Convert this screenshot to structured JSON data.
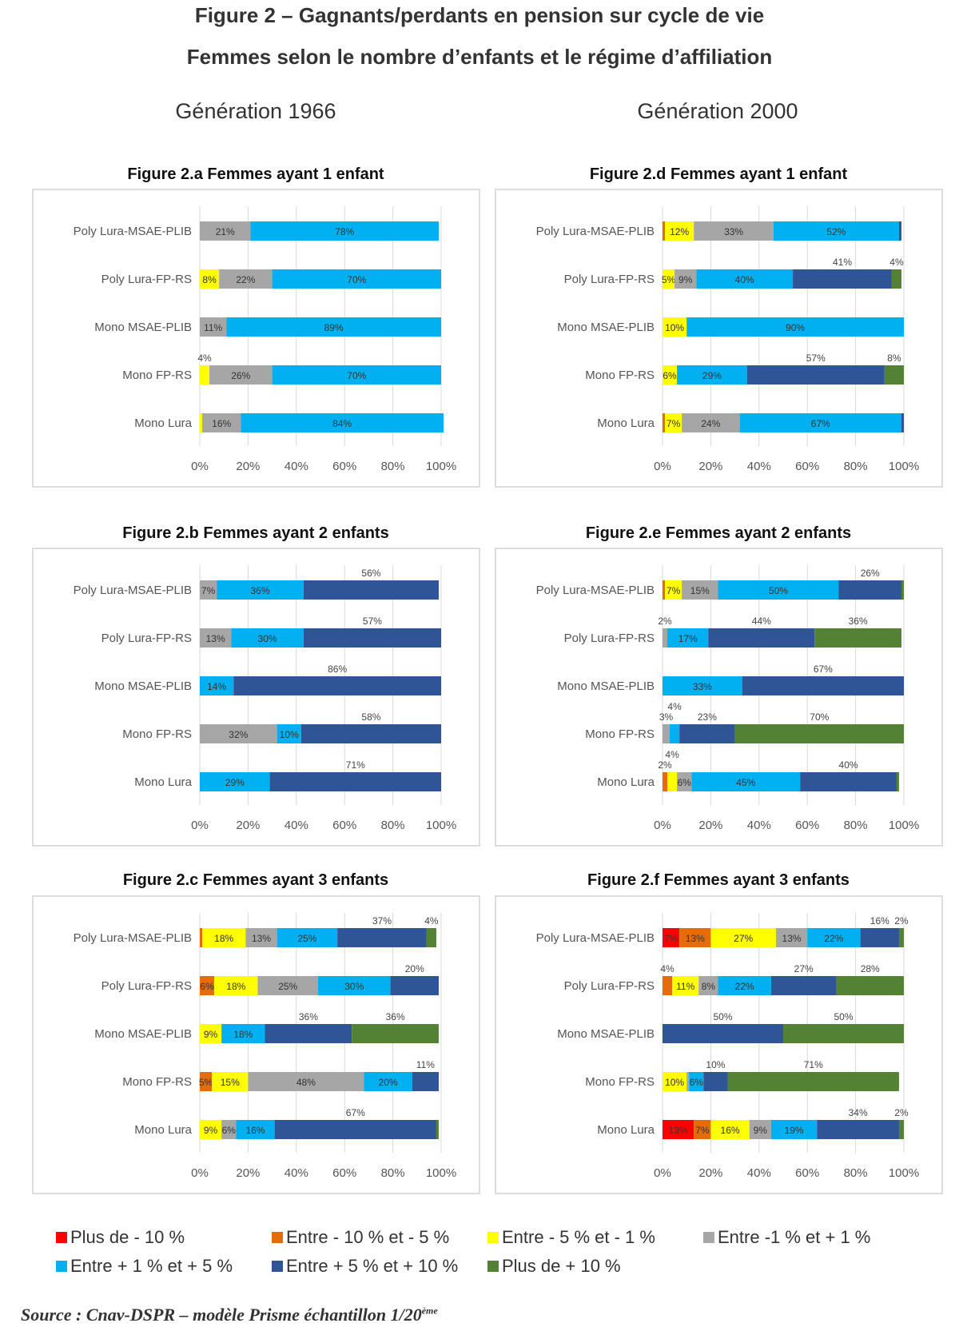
{
  "title_line1": "Figure 2 – Gagnants/perdants en pension sur cycle de vie",
  "title_line2": "Femmes selon le nombre d’enfants et le régime d’affiliation",
  "generations": [
    "Génération 1966",
    "Génération 2000"
  ],
  "source": "Source : Cnav-DSPR – modèle Prisme échantillon 1/20",
  "source_sup": "ème",
  "colors": [
    "#ff0000",
    "#e46c0a",
    "#ffff00",
    "#a6a6a6",
    "#00b0f0",
    "#2f5597",
    "#548235"
  ],
  "chart_data": [
    {
      "id": "a",
      "type": "bar",
      "orientation": "horizontal",
      "stacked": true,
      "title": "Figure 2.a Femmes ayant 1 enfant",
      "categories": [
        "Poly Lura-MSAE-PLIB",
        "Poly Lura-FP-RS",
        "Mono MSAE-PLIB",
        "Mono FP-RS",
        "Mono Lura"
      ],
      "xticks": [
        "0%",
        "20%",
        "40%",
        "60%",
        "80%",
        "100%"
      ],
      "xlim": [
        0,
        100
      ],
      "values": [
        [
          0,
          0,
          0,
          21,
          78,
          0,
          0
        ],
        [
          0,
          0,
          8,
          22,
          70,
          0,
          0
        ],
        [
          0,
          0,
          0,
          11,
          89,
          0,
          0
        ],
        [
          0,
          0,
          4,
          26,
          70,
          0,
          0
        ],
        [
          0,
          0,
          1,
          16,
          84,
          0,
          0
        ]
      ]
    },
    {
      "id": "d",
      "type": "bar",
      "orientation": "horizontal",
      "stacked": true,
      "title": "Figure 2.d Femmes ayant 1 enfant",
      "categories": [
        "Poly Lura-MSAE-PLIB",
        "Poly Lura-FP-RS",
        "Mono MSAE-PLIB",
        "Mono FP-RS",
        "Mono Lura"
      ],
      "xticks": [
        "0%",
        "20%",
        "40%",
        "60%",
        "80%",
        "100%"
      ],
      "xlim": [
        0,
        100
      ],
      "values": [
        [
          0,
          1,
          12,
          33,
          52,
          1,
          0
        ],
        [
          0,
          0,
          5,
          9,
          40,
          41,
          4
        ],
        [
          0,
          0,
          10,
          0,
          90,
          0,
          0
        ],
        [
          0,
          0,
          6,
          0,
          29,
          57,
          8
        ],
        [
          0,
          1,
          7,
          24,
          67,
          1,
          0
        ]
      ]
    },
    {
      "id": "b",
      "type": "bar",
      "orientation": "horizontal",
      "stacked": true,
      "title": "Figure 2.b Femmes ayant 2 enfants",
      "categories": [
        "Poly Lura-MSAE-PLIB",
        "Poly Lura-FP-RS",
        "Mono MSAE-PLIB",
        "Mono FP-RS",
        "Mono Lura"
      ],
      "xticks": [
        "0%",
        "20%",
        "40%",
        "60%",
        "80%",
        "100%"
      ],
      "xlim": [
        0,
        100
      ],
      "values": [
        [
          0,
          0,
          0,
          7,
          36,
          56,
          0
        ],
        [
          0,
          0,
          0,
          13,
          30,
          57,
          0
        ],
        [
          0,
          0,
          0,
          0,
          14,
          86,
          0
        ],
        [
          0,
          0,
          0,
          32,
          10,
          58,
          0
        ],
        [
          0,
          0,
          0,
          0,
          29,
          71,
          0
        ]
      ]
    },
    {
      "id": "e",
      "type": "bar",
      "orientation": "horizontal",
      "stacked": true,
      "title": "Figure 2.e Femmes ayant 2 enfants",
      "categories": [
        "Poly Lura-MSAE-PLIB",
        "Poly Lura-FP-RS",
        "Mono MSAE-PLIB",
        "Mono FP-RS",
        "Mono Lura"
      ],
      "xticks": [
        "0%",
        "20%",
        "40%",
        "60%",
        "80%",
        "100%"
      ],
      "xlim": [
        0,
        100
      ],
      "values": [
        [
          0,
          1,
          7,
          15,
          50,
          26,
          1
        ],
        [
          0,
          0,
          0,
          2,
          17,
          44,
          36
        ],
        [
          0,
          0,
          0,
          0,
          33,
          67,
          0
        ],
        [
          0,
          0,
          0,
          3,
          4,
          23,
          70
        ],
        [
          0,
          2,
          4,
          6,
          45,
          40,
          1
        ]
      ]
    },
    {
      "id": "c",
      "type": "bar",
      "orientation": "horizontal",
      "stacked": true,
      "title": "Figure 2.c Femmes ayant 3 enfants",
      "categories": [
        "Poly Lura-MSAE-PLIB",
        "Poly Lura-FP-RS",
        "Mono MSAE-PLIB",
        "Mono FP-RS",
        "Mono Lura"
      ],
      "xticks": [
        "0%",
        "20%",
        "40%",
        "60%",
        "80%",
        "100%"
      ],
      "xlim": [
        0,
        100
      ],
      "values": [
        [
          0,
          1,
          18,
          13,
          25,
          37,
          4
        ],
        [
          0,
          6,
          18,
          25,
          30,
          20,
          0
        ],
        [
          0,
          0,
          9,
          0,
          18,
          36,
          36
        ],
        [
          0,
          5,
          15,
          48,
          20,
          11,
          0
        ],
        [
          0,
          0,
          9,
          6,
          16,
          67,
          1
        ]
      ]
    },
    {
      "id": "f",
      "type": "bar",
      "orientation": "horizontal",
      "stacked": true,
      "title": "Figure 2.f Femmes ayant 3 enfants",
      "categories": [
        "Poly Lura-MSAE-PLIB",
        "Poly Lura-FP-RS",
        "Mono MSAE-PLIB",
        "Mono FP-RS",
        "Mono Lura"
      ],
      "xticks": [
        "0%",
        "20%",
        "40%",
        "60%",
        "80%",
        "100%"
      ],
      "xlim": [
        0,
        100
      ],
      "values": [
        [
          7,
          13,
          27,
          13,
          22,
          16,
          2
        ],
        [
          0,
          4,
          11,
          8,
          22,
          27,
          28
        ],
        [
          0,
          0,
          0,
          0,
          0,
          50,
          50
        ],
        [
          0,
          0,
          10,
          1,
          6,
          10,
          71
        ],
        [
          13,
          7,
          16,
          9,
          19,
          34,
          2
        ]
      ]
    }
  ],
  "legend": [
    "Plus de - 10 %",
    "Entre - 10 % et - 5 %",
    "Entre - 5 % et - 1 %",
    "Entre -1 % et + 1 %",
    "Entre + 1 % et + 5 %",
    "Entre + 5 % et + 10 %",
    "Plus de + 10 %"
  ]
}
